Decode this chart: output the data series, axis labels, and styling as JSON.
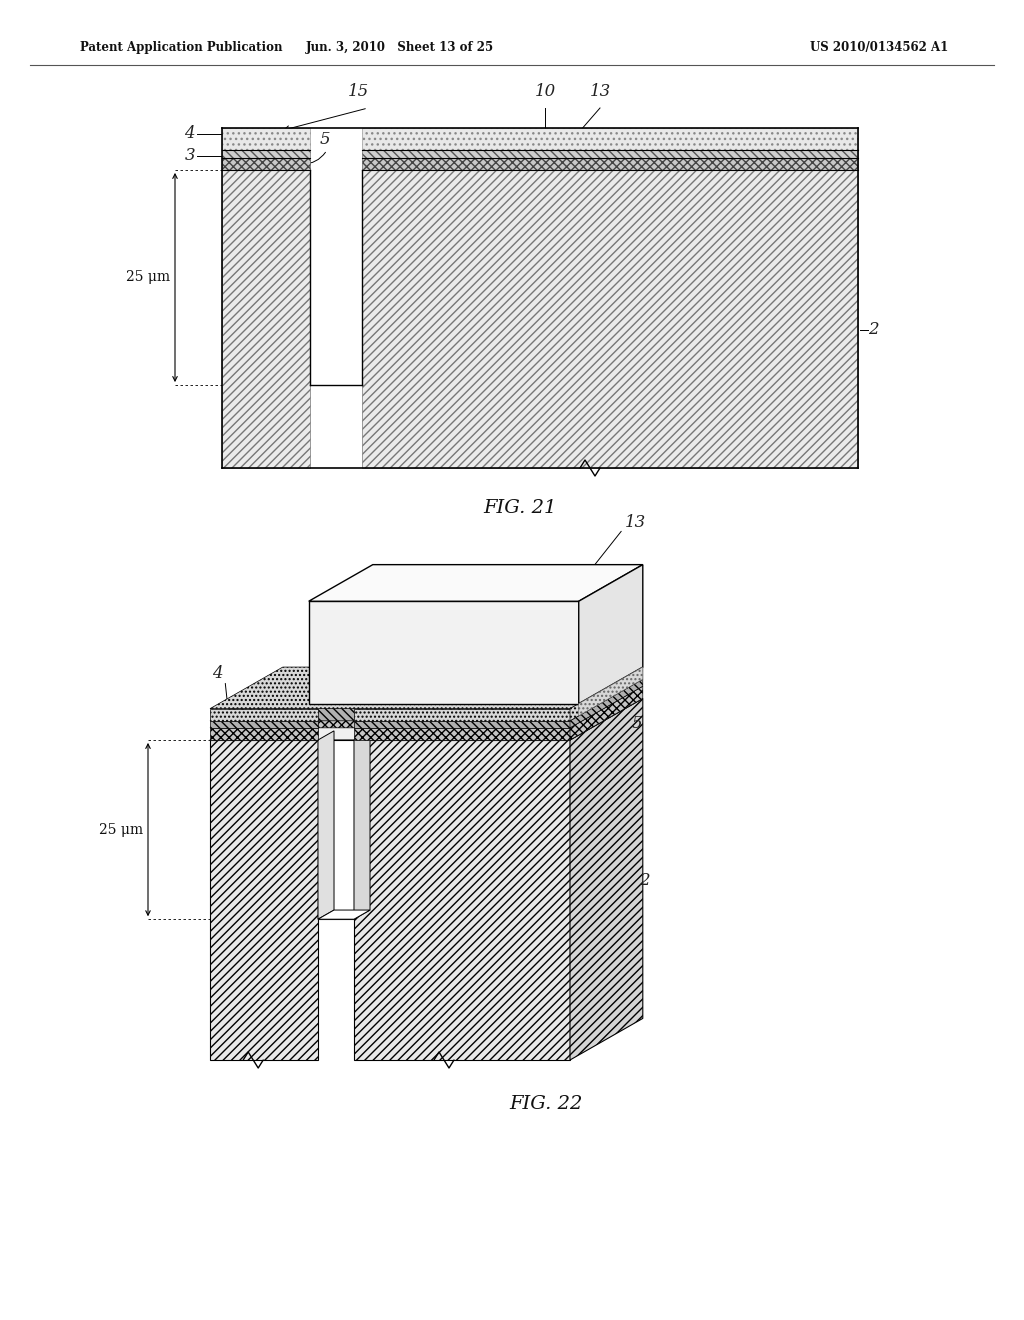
{
  "header_left": "Patent Application Publication",
  "header_mid": "Jun. 3, 2010   Sheet 13 of 25",
  "header_right": "US 2010/0134562 A1",
  "fig21_caption": "FIG. 21",
  "fig22_caption": "FIG. 22",
  "bg_color": "#ffffff",
  "dim_25um": "25 μm"
}
